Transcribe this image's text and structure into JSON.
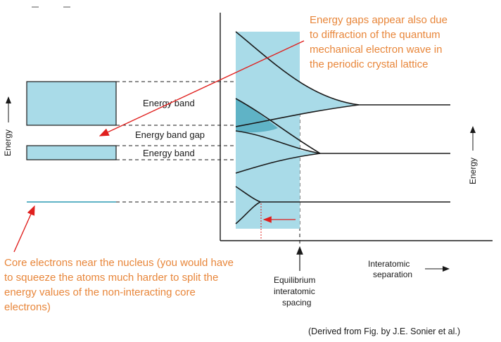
{
  "labels": {
    "energy_left": "Energy",
    "energy_right": "Energy",
    "band_upper": "Energy band",
    "band_gap": "Energy band gap",
    "band_lower": "Energy band",
    "x_axis": [
      "Interatomic",
      "separation"
    ],
    "equilibrium": [
      "Equilibrium",
      "interatomic",
      "spacing"
    ]
  },
  "annotations": {
    "top_right": [
      "Energy gaps appear also due",
      "to diffraction of the quantum",
      "mechanical electron wave in",
      "the periodic crystal lattice"
    ],
    "bottom_left": [
      "Core electrons near the nucleus (you would have",
      "to squeeze the atoms much harder to split the",
      "energy values of the non-interacting core",
      "electrons)"
    ]
  },
  "credit": "(Derived from Fig. by J.E. Sonier et al.)",
  "colors": {
    "band_fill": "#a9dbe8",
    "band_dark": "#5fb3c6",
    "outline": "#1a1a1a",
    "annotation": "#e8863a",
    "arrow_red": "#e0201e"
  }
}
